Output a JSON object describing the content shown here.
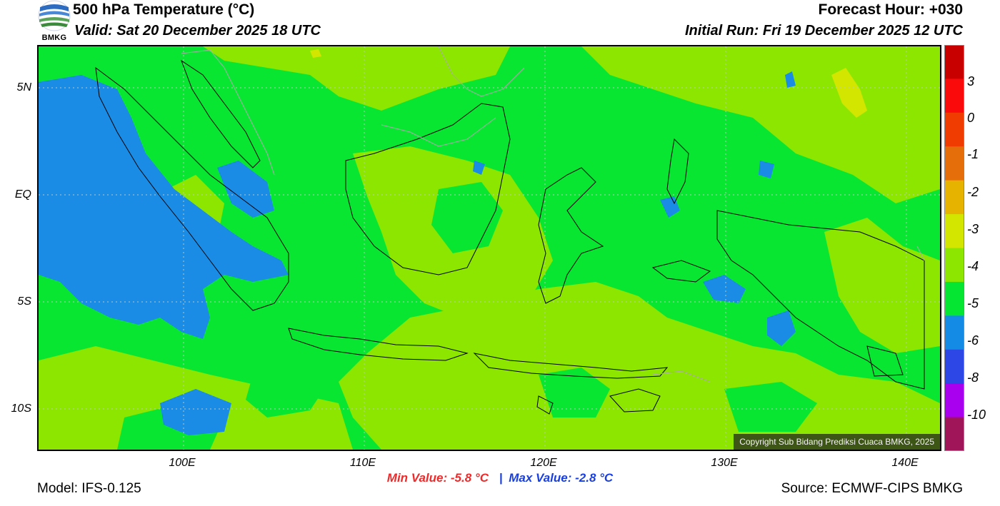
{
  "header": {
    "title": "500 hPa Temperature (°C)",
    "valid": "Valid: Sat 20 December 2025 18 UTC",
    "forecast_hour": "Forecast Hour: +030",
    "initial_run": "Initial Run: Fri 19 December 2025 12 UTC",
    "logo_text": "BMKG"
  },
  "axes": {
    "y_labels": [
      "5N",
      "EQ",
      "5S",
      "10S"
    ],
    "x_labels": [
      "100E",
      "110E",
      "120E",
      "130E",
      "140E"
    ]
  },
  "colorbar": {
    "labels": [
      "3",
      "0",
      "-1",
      "-2",
      "-3",
      "-4",
      "-5",
      "-6",
      "-8",
      "-10"
    ],
    "colors": [
      "#c80000",
      "#fa0a0a",
      "#f03c00",
      "#e66e0a",
      "#e6b400",
      "#d2e600",
      "#8ce600",
      "#05e632",
      "#148ce6",
      "#2d46e6",
      "#aa00f0",
      "#a0145a"
    ]
  },
  "palette": {
    "blue": "#1a8ce6",
    "green": "#08e632",
    "yellowgreen": "#8ce600",
    "yellow": "#d2e600"
  },
  "stats": {
    "min": "Min Value: -5.8 °C",
    "separator": "|",
    "max": "Max Value: -2.8 °C"
  },
  "footer": {
    "model": "Model: IFS-0.125",
    "source": "Source: ECMWF-CIPS BMKG",
    "copyright": "Copyright Sub Bidang Prediksi Cuaca BMKG, 2025"
  }
}
